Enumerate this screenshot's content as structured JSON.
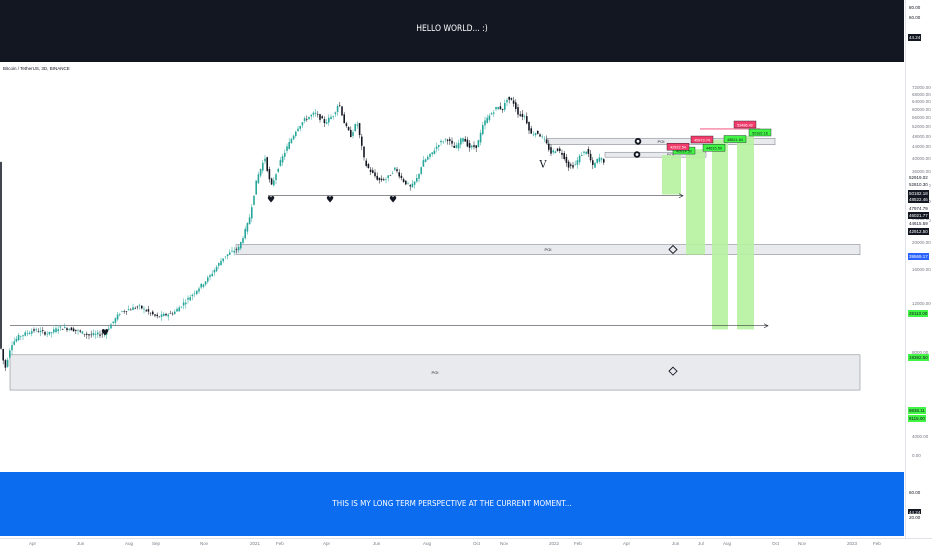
{
  "header": {
    "symbol_line": "Bitcoin / TetherUS, 3D, BINANCE",
    "top_banner_text": "HELLO WORLD... :)",
    "bottom_banner_text": "THIS IS MY LONG TERM PERSPECTIVE AT THE CURRENT MOMENT..."
  },
  "colors": {
    "bull": "#26a69a",
    "bear": "#131722",
    "zone_fill": "#e9eaee",
    "projection_green": "#b6f2a0",
    "label_green": "#42f545",
    "label_red": "#f23d6c",
    "banner_dark": "#131722",
    "banner_blue": "#0b6cf0"
  },
  "chart_data": {
    "type": "candlestick",
    "title": "Bitcoin / TetherUS, 3D, BINANCE",
    "scale": "log",
    "ylim": [
      4000,
      76000
    ],
    "price_ticks": [
      "72000.00",
      "68000.00",
      "64000.00",
      "60000.00",
      "56000.00",
      "52000.00",
      "48000.00",
      "44000.00",
      "40000.00",
      "36000.00",
      "32000.00",
      "28000.00",
      "24000.00",
      "20000.00",
      "16000.00",
      "12000.00",
      "8000.00",
      "4000.00",
      "0.00"
    ],
    "time_ticks": [
      "Apr",
      "Jun",
      "Aug",
      "Sep",
      "Nov",
      "2021",
      "Feb",
      "Apr",
      "Jun",
      "Aug",
      "Oct",
      "Nov",
      "2022",
      "Feb",
      "Apr",
      "Jun",
      "Jul",
      "Aug",
      "Oct",
      "Nov",
      "2023",
      "Feb"
    ],
    "price_path": [
      [
        0,
        9100
      ],
      [
        6,
        7000
      ],
      [
        12,
        8600
      ],
      [
        20,
        9200
      ],
      [
        35,
        9700
      ],
      [
        50,
        9400
      ],
      [
        60,
        9900
      ],
      [
        72,
        9800
      ],
      [
        90,
        9300
      ],
      [
        105,
        9400
      ],
      [
        122,
        11300
      ],
      [
        140,
        11800
      ],
      [
        158,
        10800
      ],
      [
        175,
        11200
      ],
      [
        195,
        13200
      ],
      [
        210,
        15000
      ],
      [
        225,
        17800
      ],
      [
        240,
        19200
      ],
      [
        250,
        24000
      ],
      [
        258,
        34000
      ],
      [
        266,
        40500
      ],
      [
        272,
        31500
      ],
      [
        280,
        38000
      ],
      [
        288,
        44000
      ],
      [
        298,
        51500
      ],
      [
        306,
        55500
      ],
      [
        316,
        58500
      ],
      [
        326,
        54000
      ],
      [
        335,
        58000
      ],
      [
        340,
        64000
      ],
      [
        346,
        53000
      ],
      [
        352,
        48500
      ],
      [
        358,
        54500
      ],
      [
        366,
        38500
      ],
      [
        372,
        36000
      ],
      [
        380,
        33500
      ],
      [
        388,
        34000
      ],
      [
        396,
        37000
      ],
      [
        404,
        33500
      ],
      [
        412,
        31500
      ],
      [
        418,
        34000
      ],
      [
        424,
        39000
      ],
      [
        432,
        41500
      ],
      [
        440,
        45500
      ],
      [
        448,
        47500
      ],
      [
        456,
        43500
      ],
      [
        464,
        48000
      ],
      [
        470,
        44000
      ],
      [
        478,
        44500
      ],
      [
        485,
        54000
      ],
      [
        492,
        58000
      ],
      [
        498,
        61500
      ],
      [
        504,
        60500
      ],
      [
        508,
        66000
      ],
      [
        514,
        64500
      ],
      [
        520,
        57500
      ],
      [
        526,
        57000
      ],
      [
        532,
        49000
      ],
      [
        538,
        50000
      ],
      [
        546,
        46500
      ],
      [
        552,
        42000
      ],
      [
        558,
        43500
      ],
      [
        564,
        41500
      ],
      [
        570,
        37500
      ],
      [
        576,
        38000
      ],
      [
        582,
        41500
      ],
      [
        588,
        43000
      ],
      [
        594,
        37500
      ],
      [
        600,
        40500
      ],
      [
        606,
        39000
      ]
    ],
    "poi_zones": [
      {
        "label": "POI",
        "top": 47500,
        "bottom": 45000,
        "x_start": 547,
        "x_end": 775
      },
      {
        "label": "POI",
        "top": 42300,
        "bottom": 40600,
        "x_start": 605,
        "x_end": 706
      },
      {
        "label": "POI",
        "top": 19700,
        "bottom": 18100,
        "x_start": 236,
        "x_end": 860
      },
      {
        "label": "POI",
        "top": 7900,
        "bottom": 5900,
        "x_start": 10,
        "x_end": 860
      }
    ],
    "support_lines": [
      {
        "price": 29500,
        "x_start": 268,
        "x_end": 683
      },
      {
        "price": 10050,
        "x_start": 10,
        "x_end": 768
      }
    ],
    "projections": [
      {
        "x_start": 662,
        "x_end": 681,
        "top": 41300,
        "bottom": 29800
      },
      {
        "x_start": 686,
        "x_end": 705,
        "top": 43400,
        "bottom": 18100
      },
      {
        "x_start": 712,
        "x_end": 728,
        "top": 46900,
        "bottom": 9750
      },
      {
        "x_start": 737,
        "x_end": 754,
        "top": 48400,
        "bottom": 9750
      }
    ],
    "markers": [
      {
        "type": "heart",
        "x": 271,
        "price": 28600
      },
      {
        "type": "heart",
        "x": 330,
        "price": 28600
      },
      {
        "type": "heart",
        "x": 393,
        "price": 28600
      },
      {
        "type": "heart",
        "x": 105,
        "price": 9500
      },
      {
        "type": "eye",
        "x": 638,
        "price": 46300
      },
      {
        "type": "eye",
        "x": 637,
        "price": 41500
      },
      {
        "type": "diamond",
        "x": 673,
        "price": 18900
      },
      {
        "type": "diamond",
        "x": 673,
        "price": 6900
      },
      {
        "type": "v",
        "x": 543,
        "price": 38500
      }
    ],
    "level_labels": [
      {
        "text": "40914.50",
        "x": 674,
        "price": 42700,
        "style": "green"
      },
      {
        "text": "42922.54",
        "x": 668,
        "price": 44100,
        "style": "red"
      },
      {
        "text": "45973.74",
        "x": 692,
        "price": 46800,
        "style": "red"
      },
      {
        "text": "44615.59",
        "x": 704,
        "price": 43700,
        "style": "green"
      },
      {
        "text": "48521.64",
        "x": 725,
        "price": 47000,
        "style": "green"
      },
      {
        "text": "50182.16",
        "x": 750,
        "price": 49600,
        "style": "green"
      },
      {
        "text": "53486.42",
        "x": 735,
        "price": 53000,
        "style": "red"
      }
    ],
    "axis_tags": [
      {
        "text": "80.00",
        "price_y": 7
      },
      {
        "text": "60.00",
        "price_y": 17
      },
      {
        "text": "44.24",
        "price_y": 37,
        "style": "dark"
      },
      {
        "text": "52919.02",
        "price_y": 177
      },
      {
        "text": "52810.30",
        "price_y": 184
      },
      {
        "text": "50182.18",
        "price_y": 193,
        "style": "dark"
      },
      {
        "text": "48522.46",
        "price_y": 199,
        "style": "dark"
      },
      {
        "text": "47974.79",
        "price_y": 208
      },
      {
        "text": "46021.77",
        "price_y": 215,
        "style": "dark"
      },
      {
        "text": "44615.59",
        "price_y": 223
      },
      {
        "text": "42912.50",
        "price_y": 231,
        "style": "dark"
      },
      {
        "text": "39569.17",
        "price_y": 256,
        "style": "blue"
      },
      {
        "text": "28110.00",
        "price_y": 313,
        "style": "green"
      },
      {
        "text": "19382.50",
        "price_y": 357,
        "style": "green"
      },
      {
        "text": "9836.11",
        "price_y": 410,
        "style": "green"
      },
      {
        "text": "8115.00",
        "price_y": 418,
        "style": "green"
      },
      {
        "text": "60.00",
        "price_y": 492
      },
      {
        "text": "44.24",
        "price_y": 512,
        "style": "dark"
      },
      {
        "text": "20.00",
        "price_y": 517
      }
    ]
  }
}
